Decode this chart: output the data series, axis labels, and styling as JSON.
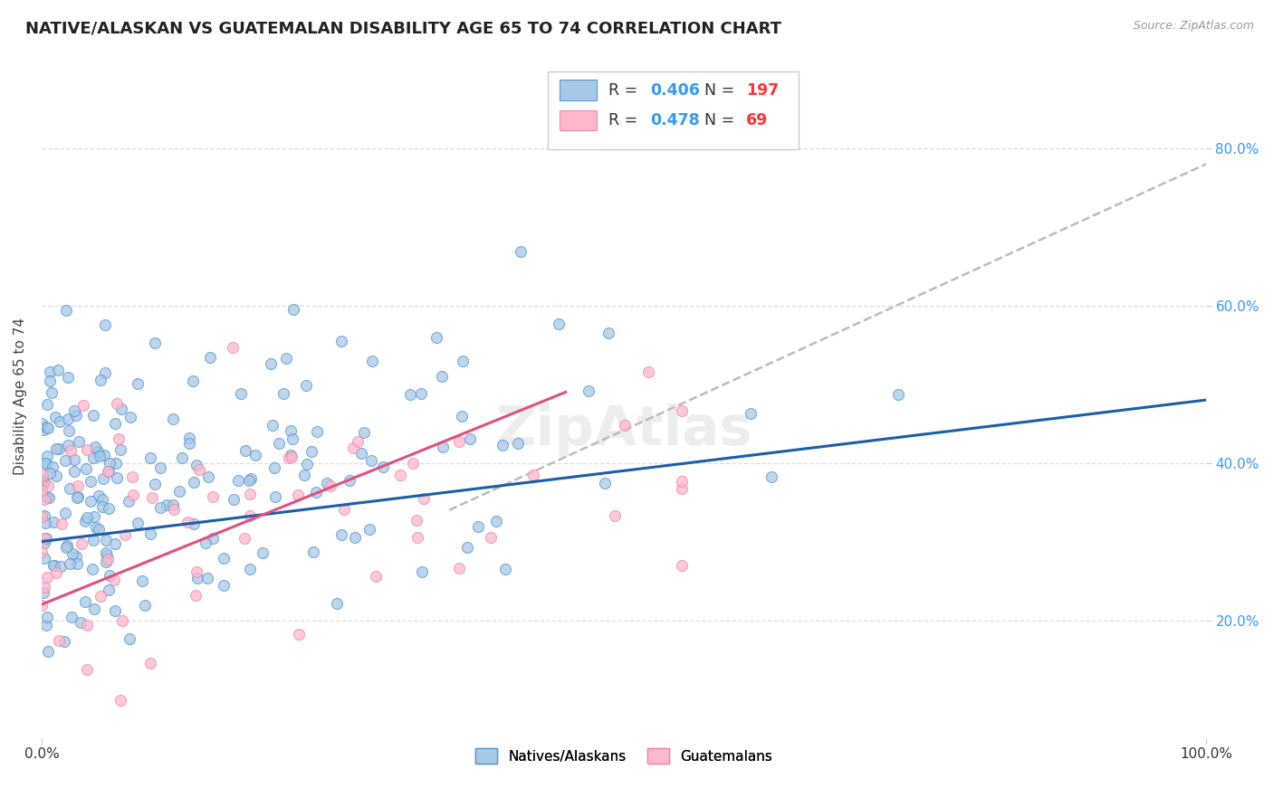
{
  "title": "NATIVE/ALASKAN VS GUATEMALAN DISABILITY AGE 65 TO 74 CORRELATION CHART",
  "source": "Source: ZipAtlas.com",
  "ylabel": "Disability Age 65 to 74",
  "xlim": [
    0.0,
    1.0
  ],
  "ylim": [
    0.05,
    0.92
  ],
  "xticks": [
    0.0,
    1.0
  ],
  "xticklabels": [
    "0.0%",
    "100.0%"
  ],
  "yticks": [
    0.2,
    0.4,
    0.6,
    0.8
  ],
  "yticklabels": [
    "20.0%",
    "40.0%",
    "60.0%",
    "80.0%"
  ],
  "native_color": "#a8c8e8",
  "native_edge_color": "#5599cc",
  "guatemalan_color": "#ffb8cc",
  "guatemalan_edge_color": "#ee88aa",
  "native_R": 0.406,
  "native_N": 197,
  "guatemalan_R": 0.478,
  "guatemalan_N": 69,
  "native_line_color": "#1a5fa8",
  "guatemalan_line_color": "#e05080",
  "dashed_line_color": "#bbbbbb",
  "watermark": "ZipAtlas",
  "background_color": "#ffffff",
  "grid_color": "#dddddd",
  "legend_R_color": "#3399ff",
  "legend_N_color": "#ff3333",
  "title_fontsize": 13,
  "axis_label_fontsize": 11,
  "tick_fontsize": 11,
  "marker_size": 75,
  "seed": 99,
  "native_line_x0": 0.0,
  "native_line_y0": 0.3,
  "native_line_x1": 1.0,
  "native_line_y1": 0.48,
  "guat_line_x0": 0.0,
  "guat_line_y0": 0.22,
  "guat_line_x1": 0.45,
  "guat_line_y1": 0.49,
  "dashed_line_x0": 0.35,
  "dashed_line_y0": 0.34,
  "dashed_line_x1": 1.0,
  "dashed_line_y1": 0.78
}
